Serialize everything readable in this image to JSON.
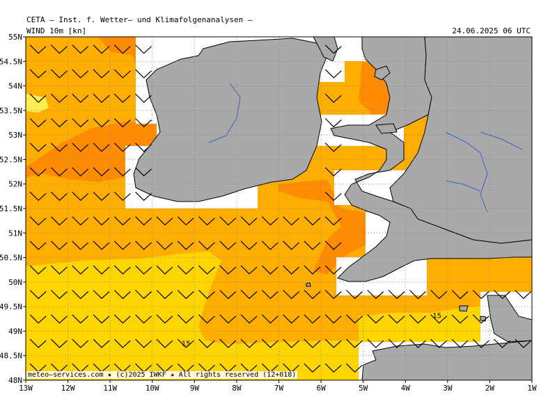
{
  "header": {
    "title": "CETA — Inst. f. Wetter— und Klimafolgenanalysen —",
    "product": "WIND 10m [kn]",
    "valid_time": "24.06.2025 06 UTC"
  },
  "footer": {
    "credit": "meteo—services.com ★ (c)2025 IWKF ★ All rights reserved (12+018)"
  },
  "axes": {
    "lat_labels": [
      "55N",
      "54.5N",
      "54N",
      "53.5N",
      "53N",
      "52.5N",
      "52N",
      "51.5N",
      "51N",
      "50.5N",
      "50N",
      "49.5N",
      "49N",
      "48.5N",
      "48N"
    ],
    "lon_labels": [
      "13W",
      "12W",
      "11W",
      "10W",
      "9W",
      "8W",
      "7W",
      "6W",
      "5W",
      "4W",
      "3W",
      "2W",
      "1W"
    ],
    "lat_range": [
      48,
      55
    ],
    "lon_range": [
      -13,
      -1
    ]
  },
  "contour_labels": [
    {
      "text": "15",
      "lon": -9.2,
      "lat": 48.7
    },
    {
      "text": "15",
      "lon": -3.25,
      "lat": 49.27
    }
  ],
  "colors": {
    "land": "#a9a9a9",
    "sea_mask": "#ffffff",
    "wind_10_15": "#ffd500",
    "wind_15_20": "#ffae00",
    "wind_20_25": "#ff8c00",
    "wind_light": "#ffee50",
    "rivers": "#3a5fcd"
  },
  "barb": {
    "direction_from": "WSW",
    "typical_speed_kn": 15
  }
}
